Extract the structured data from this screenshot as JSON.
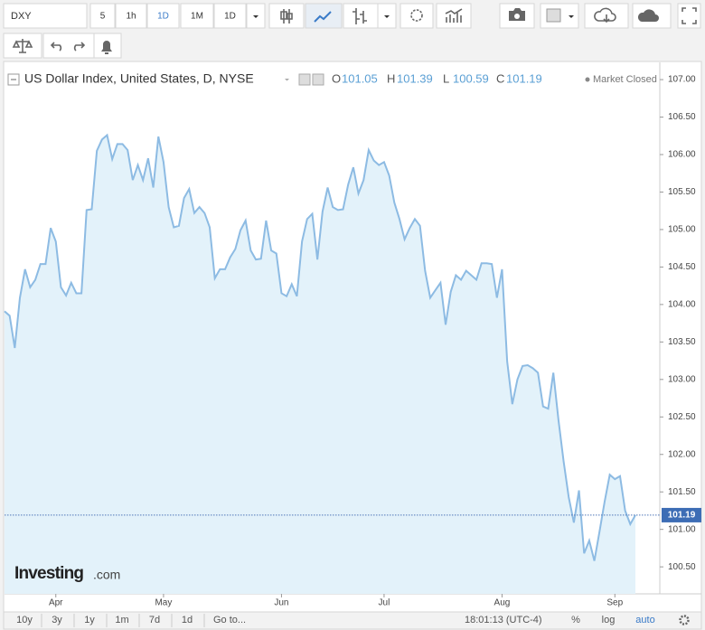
{
  "ui": {
    "symbol": "DXY",
    "intervals": [
      "5",
      "1h",
      "1D",
      "1M",
      "1D"
    ],
    "ranges": [
      "10y",
      "3y",
      "1y",
      "1m",
      "7d",
      "1d"
    ],
    "goto": "Go to...",
    "clock": "18:01:13 (UTC-4)",
    "scale_options": [
      "%",
      "log",
      "auto"
    ]
  },
  "chart_data": {
    "type": "area",
    "title": "US Dollar Index, United States, D, NYSE",
    "status": "Market Closed",
    "ohlc": [
      {
        "label": "O",
        "value": 101.05
      },
      {
        "label": "H",
        "value": 101.39
      },
      {
        "label": "L",
        "value": 100.59
      },
      {
        "label": "C",
        "value": 101.19
      }
    ],
    "watermark": {
      "brand": "Investing",
      "suffix": ".com"
    },
    "color": "#8dbbe3",
    "fill_color": "#e3f2fa",
    "last_price": 101.19,
    "categories": [
      null,
      null,
      null,
      null,
      null,
      null,
      null,
      null,
      null,
      null,
      "Apr",
      null,
      null,
      null,
      null,
      null,
      null,
      null,
      null,
      null,
      null,
      null,
      null,
      null,
      null,
      null,
      null,
      null,
      null,
      null,
      null,
      "May",
      null,
      null,
      null,
      null,
      null,
      null,
      null,
      null,
      null,
      null,
      null,
      null,
      null,
      null,
      null,
      null,
      null,
      null,
      null,
      null,
      null,
      null,
      "Jun",
      null,
      null,
      null,
      null,
      null,
      null,
      null,
      null,
      null,
      null,
      null,
      null,
      null,
      null,
      null,
      null,
      null,
      null,
      null,
      "Jul",
      null,
      null,
      null,
      null,
      null,
      null,
      null,
      null,
      null,
      null,
      null,
      null,
      null,
      null,
      null,
      null,
      null,
      null,
      null,
      null,
      null,
      null,
      "Aug",
      null,
      null,
      null,
      null,
      null,
      null,
      null,
      null,
      null,
      null,
      null,
      null,
      null,
      null,
      null,
      null,
      null,
      null,
      null,
      null,
      null,
      "Sep",
      null,
      null,
      null,
      null
    ],
    "values": [
      103.91,
      103.85,
      103.42,
      104.09,
      104.47,
      104.23,
      104.33,
      104.54,
      104.54,
      105.02,
      104.84,
      104.23,
      104.12,
      104.29,
      104.15,
      104.15,
      105.26,
      105.27,
      106.05,
      106.2,
      106.26,
      105.94,
      106.14,
      106.14,
      106.06,
      105.66,
      105.86,
      105.66,
      105.95,
      105.56,
      106.24,
      105.9,
      105.3,
      105.03,
      105.05,
      105.42,
      105.54,
      105.22,
      105.3,
      105.22,
      105.03,
      104.35,
      104.47,
      104.47,
      104.63,
      104.74,
      104.99,
      105.12,
      104.72,
      104.6,
      104.61,
      105.12,
      104.72,
      104.68,
      104.15,
      104.11,
      104.27,
      104.11,
      104.84,
      105.14,
      105.21,
      104.6,
      105.24,
      105.56,
      105.3,
      105.26,
      105.27,
      105.6,
      105.83,
      105.48,
      105.66,
      106.06,
      105.92,
      105.86,
      105.9,
      105.72,
      105.36,
      105.14,
      104.87,
      105.02,
      105.14,
      105.05,
      104.45,
      104.09,
      104.19,
      104.29,
      103.73,
      104.17,
      104.39,
      104.33,
      104.45,
      104.39,
      104.33,
      104.55,
      104.55,
      104.54,
      104.09,
      104.47,
      103.24,
      102.67,
      103.0,
      103.18,
      103.19,
      103.15,
      103.09,
      102.64,
      102.61,
      103.09,
      102.46,
      101.91,
      101.43,
      101.09,
      101.52,
      100.68,
      100.85,
      100.58,
      100.97,
      101.37,
      101.73,
      101.67,
      101.71,
      101.25,
      101.07,
      101.19
    ],
    "ylim": [
      100.14,
      107.23
    ],
    "yticks": [
      {
        "value": 100.5,
        "label": "100.50"
      },
      {
        "value": 101,
        "label": "101.00"
      },
      {
        "value": 101.5,
        "label": "101.50"
      },
      {
        "value": 102,
        "label": "102.00"
      },
      {
        "value": 102.5,
        "label": "102.50"
      },
      {
        "value": 103,
        "label": "103.00"
      },
      {
        "value": 103.5,
        "label": "103.50"
      },
      {
        "value": 104,
        "label": "104.00"
      },
      {
        "value": 104.5,
        "label": "104.50"
      },
      {
        "value": 105,
        "label": "105.00"
      },
      {
        "value": 105.5,
        "label": "105.50"
      },
      {
        "value": 106,
        "label": "106.00"
      },
      {
        "value": 106.5,
        "label": "106.50"
      },
      {
        "value": 107,
        "label": "107.00"
      }
    ],
    "grid": false
  }
}
